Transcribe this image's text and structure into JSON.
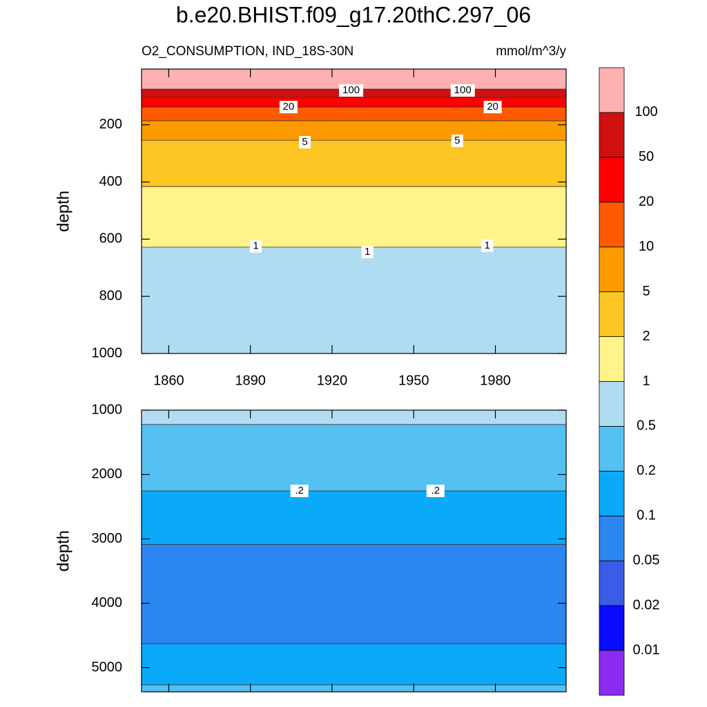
{
  "title": "b.e20.BHIST.f09_g17.20thC.297_06",
  "chart_data": [
    {
      "type": "contour",
      "subtitle": "O2_CONSUMPTION, IND_18S-30N",
      "units": "mmol/m^3/y",
      "ylabel": "depth",
      "xlim": [
        1850,
        2006
      ],
      "ylim": [
        5,
        1000
      ],
      "y_reversed": true,
      "xticks": [
        1860,
        1890,
        1920,
        1950,
        1980
      ],
      "yticks": [
        200,
        400,
        600,
        800,
        1000
      ],
      "contours": [
        {
          "level": 100,
          "depth": 75
        },
        {
          "level": 50,
          "depth": 104
        },
        {
          "level": 20,
          "depth": 138
        },
        {
          "level": 10,
          "depth": 186
        },
        {
          "level": 5,
          "depth": 254
        },
        {
          "level": 2,
          "depth": 416
        },
        {
          "level": 1,
          "depth": 628
        }
      ],
      "fills": [
        "#ffb0b0",
        "#d01010",
        "#ff0000",
        "#ff5a00",
        "#fd9a00",
        "#fdc623",
        "#fff38a",
        "#b0dcf2"
      ],
      "contour_labels": [
        {
          "level": 100,
          "x": 1927,
          "depth": 80
        },
        {
          "level": 100,
          "x": 1968,
          "depth": 80
        },
        {
          "level": 20,
          "x": 1904,
          "depth": 138
        },
        {
          "level": 20,
          "x": 1979,
          "depth": 138
        },
        {
          "level": 5,
          "x": 1910,
          "depth": 261
        },
        {
          "level": 5,
          "x": 1966,
          "depth": 256
        },
        {
          "level": 1,
          "x": 1892,
          "depth": 625
        },
        {
          "level": 1,
          "x": 1933,
          "depth": 645
        },
        {
          "level": 1,
          "x": 1977,
          "depth": 623
        }
      ]
    },
    {
      "type": "contour",
      "ylabel": "depth",
      "xlim": [
        1850,
        2006
      ],
      "ylim": [
        1000,
        5375
      ],
      "y_reversed": true,
      "yticks": [
        1000,
        2000,
        3000,
        4000,
        5000
      ],
      "contours": [
        {
          "level": 0.5,
          "depth": 1223
        },
        {
          "level": 0.2,
          "depth": 2255
        },
        {
          "level": 0.1,
          "depth": 3085
        },
        {
          "level": 0.1,
          "depth": 4628
        },
        {
          "level": 0.2,
          "depth": 5267
        }
      ],
      "fills": [
        "#b0dcf2",
        "#55c0f2",
        "#0aaaf9",
        "#2b86f0",
        "#0aaaf9",
        "#55c0f2"
      ],
      "contour_labels": [
        {
          "level": 0.2,
          "label": ".2",
          "x": 1908,
          "depth": 2255
        },
        {
          "level": 0.2,
          "label": ".2",
          "x": 1958,
          "depth": 2255
        }
      ]
    }
  ],
  "colorbar": {
    "levels": [
      0.01,
      0.02,
      0.05,
      0.1,
      0.2,
      0.5,
      1,
      2,
      5,
      10,
      20,
      50,
      100
    ],
    "colors": [
      "#8b2cf0",
      "#0a0aff",
      "#3a5ce6",
      "#2b86f0",
      "#0aaaf9",
      "#55c0f2",
      "#b0dcf2",
      "#fff38a",
      "#fdc623",
      "#fd9a00",
      "#ff5a00",
      "#ff0000",
      "#d01010",
      "#ffb0b0"
    ]
  }
}
